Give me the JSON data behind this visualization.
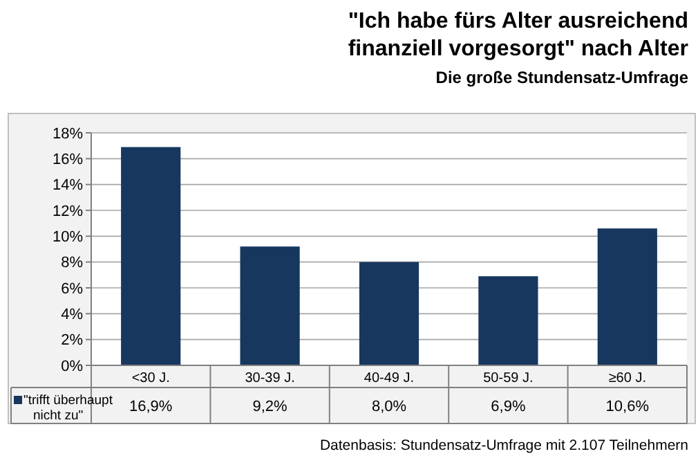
{
  "chart_data": {
    "type": "bar",
    "title": "\"Ich habe fürs Alter ausreichend finanziell vorgesorgt\" nach Alter",
    "subtitle": "Die große Stundensatz-Umfrage",
    "categories": [
      "<30 J.",
      "30-39 J.",
      "40-49 J.",
      "50-59 J.",
      "≥60 J."
    ],
    "series": [
      {
        "name": "\"trifft überhaupt nicht zu\"",
        "color": "#17375e",
        "values": [
          16.9,
          9.2,
          8.0,
          6.9,
          10.6
        ],
        "value_labels": [
          "16,9%",
          "9,2%",
          "8,0%",
          "6,9%",
          "10,6%"
        ]
      }
    ],
    "ylim": [
      0,
      18
    ],
    "yticks": [
      {
        "value": 0,
        "label": "0%"
      },
      {
        "value": 2,
        "label": "2%"
      },
      {
        "value": 4,
        "label": "4%"
      },
      {
        "value": 6,
        "label": "6%"
      },
      {
        "value": 8,
        "label": "8%"
      },
      {
        "value": 10,
        "label": "10%"
      },
      {
        "value": 12,
        "label": "12%"
      },
      {
        "value": 14,
        "label": "14%"
      },
      {
        "value": 16,
        "label": "16%"
      },
      {
        "value": 18,
        "label": "18%"
      }
    ],
    "grid": "y",
    "legend": "bottom left",
    "annotations": [
      "Datenbasis: Stundensatz-Umfrage mit 2.107 Teilnehmern"
    ]
  }
}
